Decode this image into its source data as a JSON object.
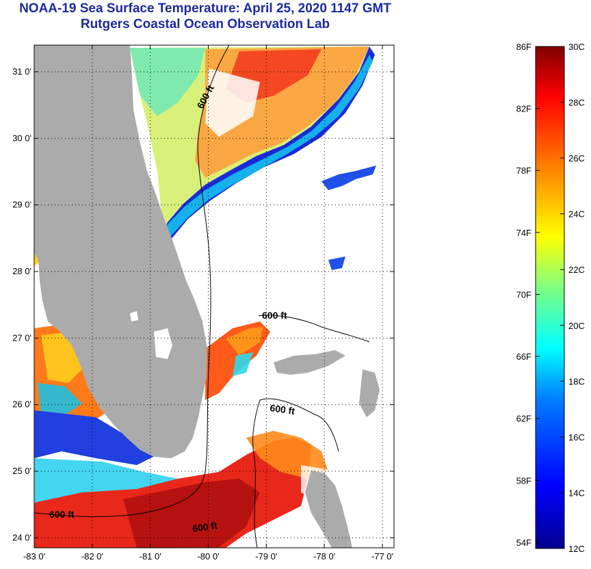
{
  "title": {
    "line1": "NOAA-19 Sea Surface Temperature:  April 25, 2020 1147 GMT",
    "line2": "Rutgers Coastal Ocean Observation Lab"
  },
  "map": {
    "lon_range": [
      -83,
      -76.8
    ],
    "lat_range": [
      23.85,
      31.4
    ],
    "lon_ticks": [
      "-83 0'",
      "-82 0'",
      "-81 0'",
      "-80 0'",
      "-79 0'",
      "-78 0'",
      "-77 0'"
    ],
    "lat_ticks": [
      "24 0'",
      "25 0'",
      "26 0'",
      "27 0'",
      "28 0'",
      "29 0'",
      "30 0'",
      "31 0'"
    ],
    "contour_labels": [
      "600 ft",
      "600 ft",
      "600 ft",
      "600 ft",
      "600 ft"
    ],
    "land_color": "#ababab",
    "nodata_color": "#ffffff"
  },
  "colorbar": {
    "fahrenheit_labels": [
      "86F",
      "82F",
      "78F",
      "74F",
      "70F",
      "66F",
      "62F",
      "58F",
      "54F"
    ],
    "celsius_labels": [
      "30C",
      "28C",
      "26C",
      "24C",
      "22C",
      "20C",
      "18C",
      "16C",
      "14C",
      "12C"
    ],
    "range_c": [
      12,
      30
    ],
    "colors": [
      "#00008f",
      "#0000ff",
      "#0080ff",
      "#00ffff",
      "#80ff80",
      "#ffff00",
      "#ff8000",
      "#ff0000",
      "#800000"
    ]
  }
}
